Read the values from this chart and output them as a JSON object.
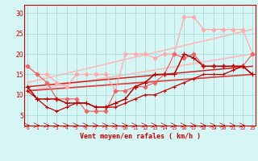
{
  "xlabel": "Vent moyen/en rafales ( km/h )",
  "background_color": "#d6f5f5",
  "grid_color": "#aadddd",
  "text_color": "#cc0000",
  "x_ticks": [
    0,
    1,
    2,
    3,
    4,
    5,
    6,
    7,
    8,
    9,
    10,
    11,
    12,
    13,
    14,
    15,
    16,
    17,
    18,
    19,
    20,
    21,
    22,
    23
  ],
  "y_ticks": [
    5,
    10,
    15,
    20,
    25,
    30
  ],
  "ylim": [
    2.5,
    32
  ],
  "xlim": [
    -0.3,
    23.3
  ],
  "series": [
    {
      "x": [
        0,
        1,
        2,
        3,
        4,
        5,
        6,
        7,
        8,
        9,
        10,
        11,
        12,
        13,
        14,
        15,
        16,
        17,
        18,
        19,
        20,
        21,
        22,
        23
      ],
      "y": [
        11,
        9,
        7,
        6,
        7,
        8,
        8,
        7,
        7,
        7,
        8,
        9,
        10,
        10,
        11,
        12,
        13,
        14,
        15,
        15,
        15,
        16,
        17,
        15
      ],
      "color": "#cc0000",
      "linewidth": 0.9,
      "marker": "+",
      "markersize": 3.5,
      "zorder": 5
    },
    {
      "x": [
        0,
        1,
        2,
        3,
        4,
        5,
        6,
        7,
        8,
        9,
        10,
        11,
        12,
        13,
        14,
        15,
        16,
        17,
        18,
        19,
        20,
        21,
        22,
        23
      ],
      "y": [
        12,
        9,
        9,
        9,
        8,
        8,
        8,
        7,
        7,
        8,
        9,
        12,
        13,
        15,
        15,
        15,
        20,
        19,
        17,
        17,
        17,
        17,
        17,
        15
      ],
      "color": "#bb0000",
      "linewidth": 1.1,
      "marker": "+",
      "markersize": 4.5,
      "zorder": 6
    },
    {
      "x": [
        0,
        1,
        2,
        3,
        4,
        5,
        6,
        7,
        8,
        9,
        10,
        11,
        12,
        13,
        14,
        15,
        16,
        17,
        18,
        19,
        20,
        21,
        22,
        23
      ],
      "y": [
        17,
        15,
        13,
        9,
        9,
        9,
        6,
        6,
        6,
        11,
        11,
        12,
        12,
        13,
        15,
        20,
        19,
        20,
        17,
        17,
        17,
        17,
        17,
        20
      ],
      "color": "#ee6666",
      "linewidth": 0.9,
      "marker": "D",
      "markersize": 2.5,
      "zorder": 4
    },
    {
      "x": [
        0,
        1,
        2,
        3,
        4,
        5,
        6,
        7,
        8,
        9,
        10,
        11,
        12,
        13,
        14,
        15,
        16,
        17,
        18,
        19,
        20,
        21,
        22,
        23
      ],
      "y": [
        17,
        15,
        15,
        13,
        12,
        15,
        15,
        15,
        15,
        11,
        20,
        20,
        20,
        19,
        20,
        20,
        29,
        29,
        26,
        26,
        26,
        26,
        26,
        20
      ],
      "color": "#ffaaaa",
      "linewidth": 0.9,
      "marker": "D",
      "markersize": 2.5,
      "zorder": 3
    },
    {
      "x": [
        0,
        23
      ],
      "y": [
        11,
        20
      ],
      "color": "#ffbbbb",
      "linewidth": 1.3,
      "marker": null,
      "markersize": 0,
      "zorder": 1
    },
    {
      "x": [
        0,
        23
      ],
      "y": [
        13,
        26
      ],
      "color": "#ffbbbb",
      "linewidth": 1.3,
      "marker": null,
      "markersize": 0,
      "zorder": 1
    },
    {
      "x": [
        0,
        23
      ],
      "y": [
        11,
        15
      ],
      "color": "#dd4444",
      "linewidth": 1.3,
      "marker": null,
      "markersize": 0,
      "zorder": 2
    },
    {
      "x": [
        0,
        23
      ],
      "y": [
        12,
        17
      ],
      "color": "#cc2222",
      "linewidth": 1.1,
      "marker": null,
      "markersize": 0,
      "zorder": 2
    }
  ]
}
